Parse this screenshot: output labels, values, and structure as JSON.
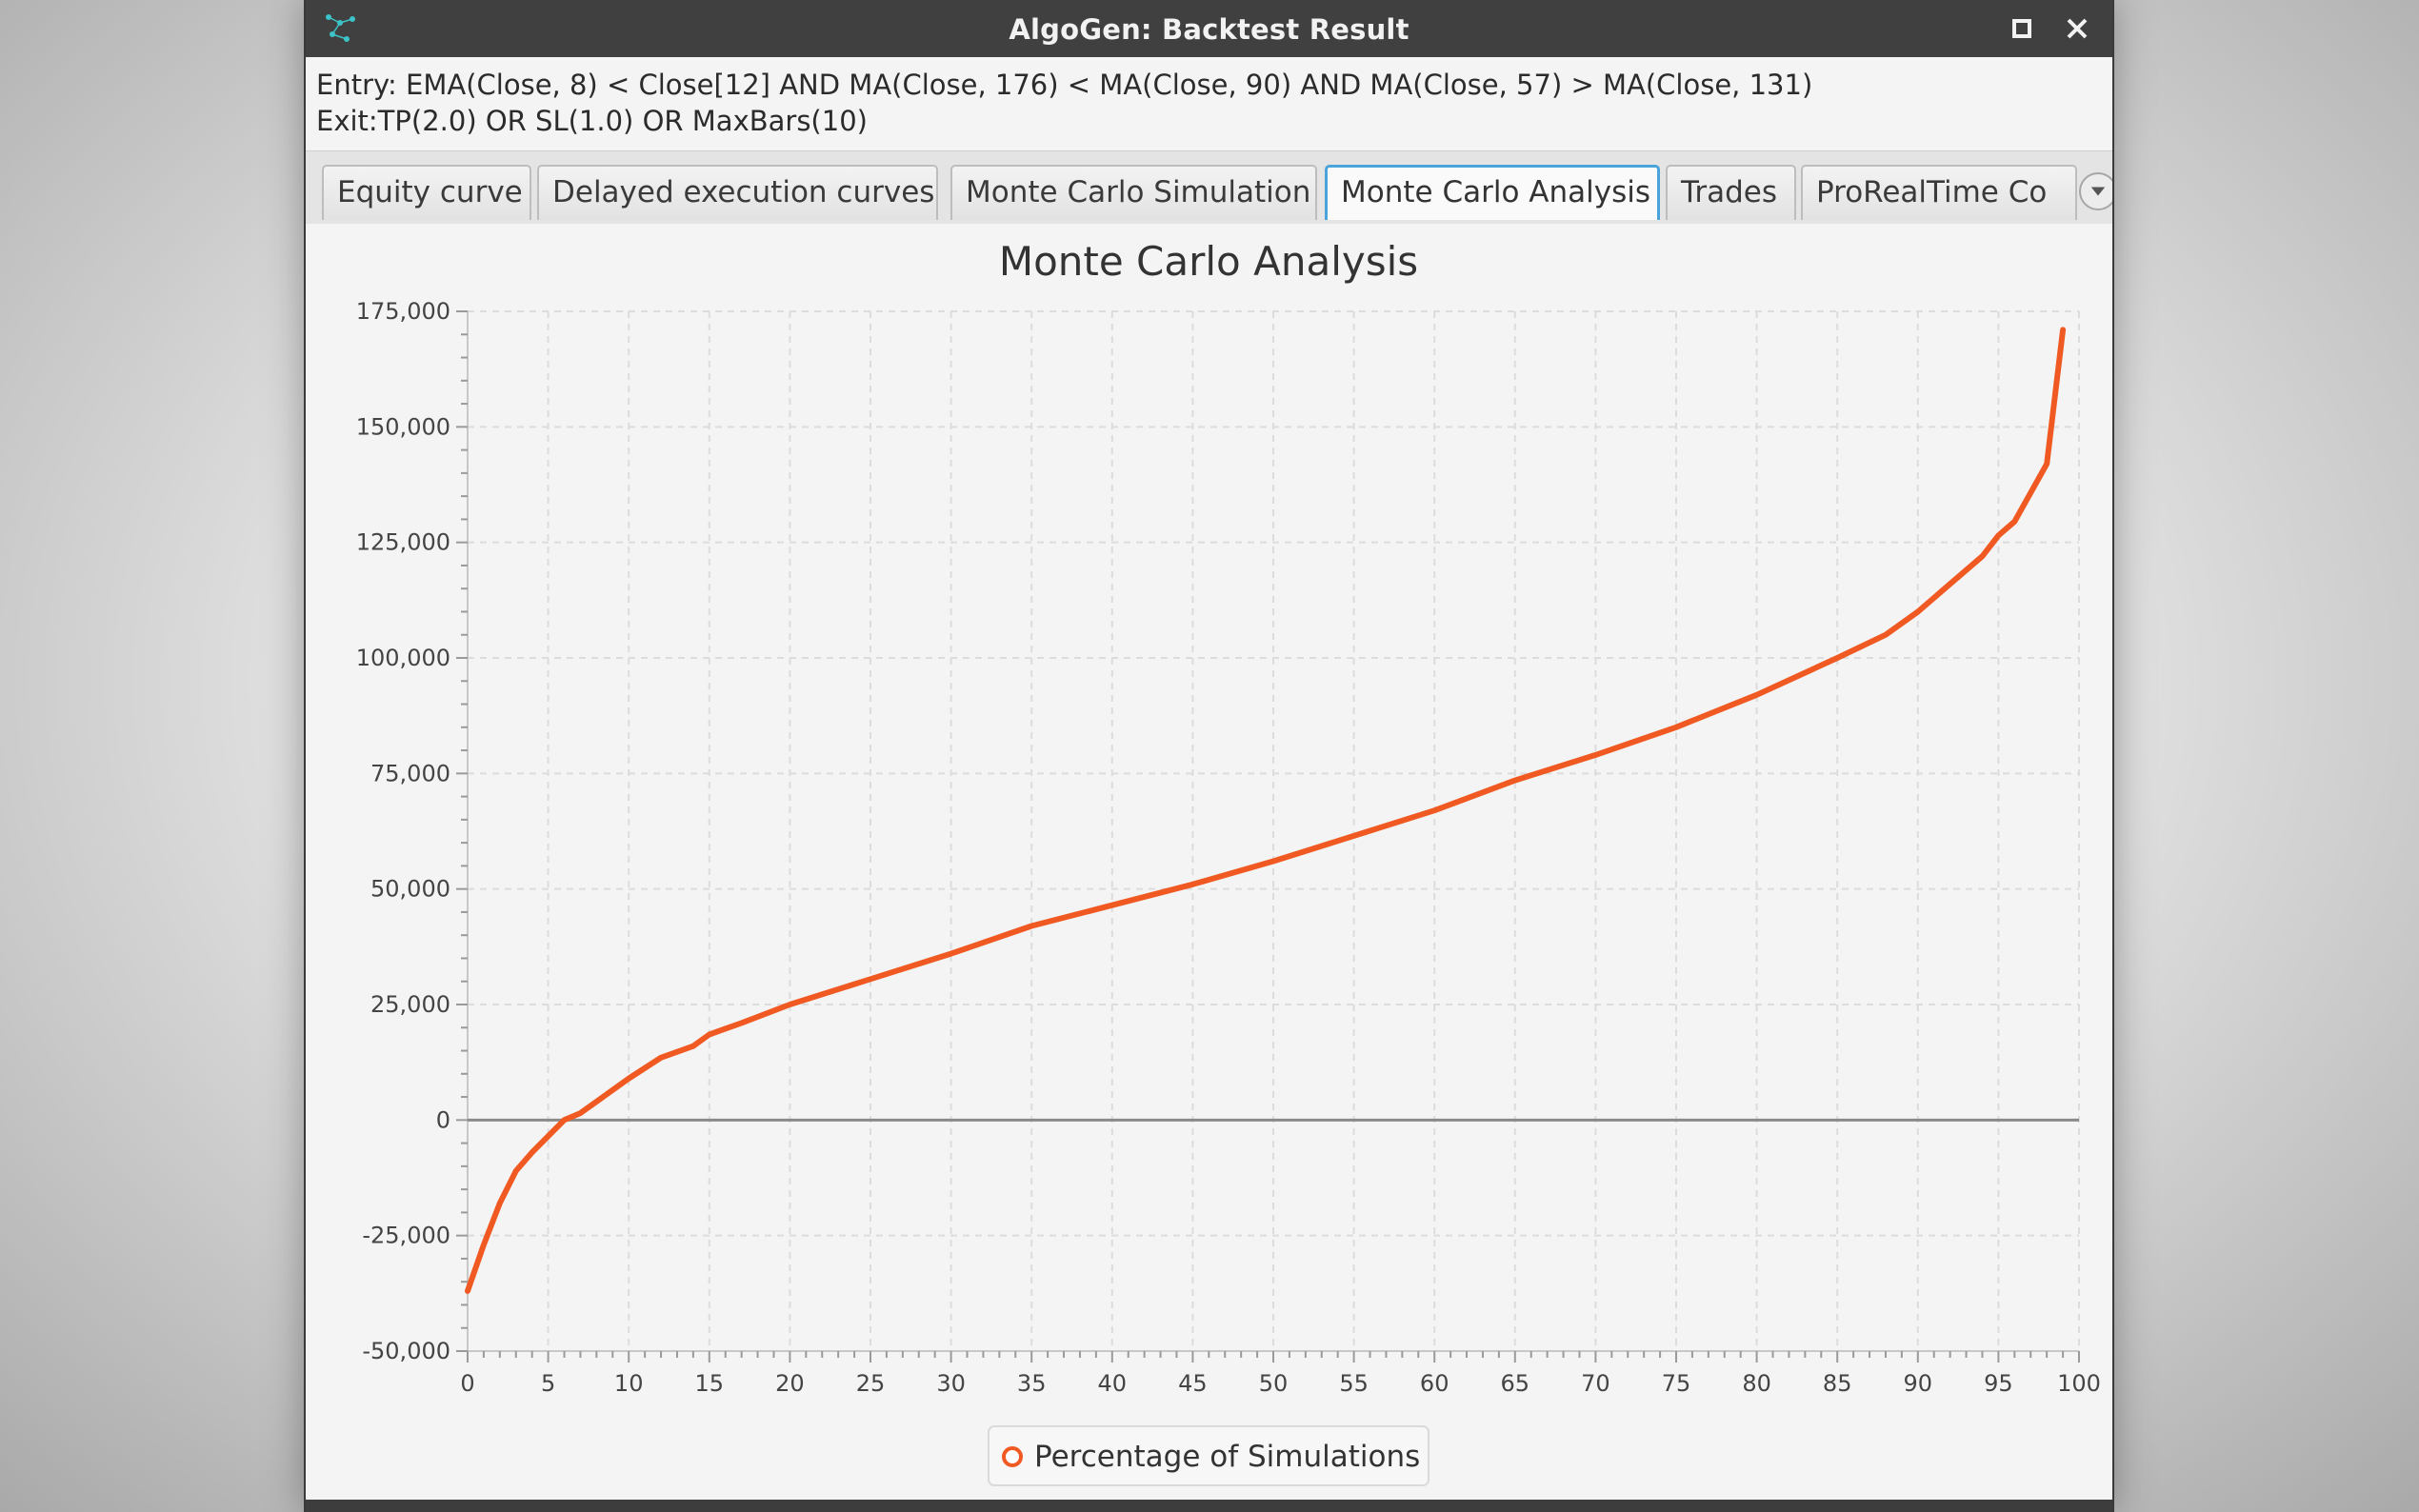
{
  "window": {
    "title": "AlgoGen: Backtest Result"
  },
  "strategy": {
    "entry": "Entry: EMA(Close, 8) < Close[12] AND MA(Close, 176) < MA(Close, 90) AND MA(Close, 57) > MA(Close, 131)",
    "exit": "Exit:TP(2.0) OR SL(1.0) OR MaxBars(10)"
  },
  "tabs": [
    {
      "label": "Equity curve",
      "active": false
    },
    {
      "label": "Delayed execution curves",
      "active": false
    },
    {
      "label": "Monte Carlo Simulation",
      "active": false
    },
    {
      "label": "Monte Carlo Analysis",
      "active": true
    },
    {
      "label": "Trades",
      "active": false
    },
    {
      "label": "ProRealTime Co",
      "active": false
    }
  ],
  "colors": {
    "series": "#f05a22",
    "active_tab": "#4ba3dc",
    "titlebar": "#404040"
  },
  "icons": {
    "app": "app-logo-icon",
    "maximize": "maximize-icon",
    "close": "close-icon",
    "tab_overflow": "chevron-down-icon"
  },
  "chart_data": {
    "type": "line",
    "title": "Monte Carlo Analysis",
    "xlabel": "",
    "ylabel": "",
    "xlim": [
      0,
      100
    ],
    "ylim": [
      -50000,
      175000
    ],
    "x_ticks": [
      0,
      5,
      10,
      15,
      20,
      25,
      30,
      35,
      40,
      45,
      50,
      55,
      60,
      65,
      70,
      75,
      80,
      85,
      90,
      95,
      100
    ],
    "x_tick_labels": [
      "0",
      "5",
      "10",
      "15",
      "20",
      "25",
      "30",
      "35",
      "40",
      "45",
      "50",
      "55",
      "60",
      "65",
      "70",
      "75",
      "80",
      "85",
      "90",
      "95",
      "100"
    ],
    "y_ticks": [
      -50000,
      -25000,
      0,
      25000,
      50000,
      75000,
      100000,
      125000,
      150000,
      175000
    ],
    "y_tick_labels": [
      "-50,000",
      "-25,000",
      "0",
      "25,000",
      "50,000",
      "75,000",
      "100,000",
      "125,000",
      "150,000",
      "175,000"
    ],
    "grid": true,
    "legend": "bottom-center",
    "series": [
      {
        "name": "Percentage of Simulations",
        "x": [
          0,
          1,
          2,
          3,
          4,
          5,
          6,
          7,
          8,
          10,
          12,
          14,
          15,
          17,
          20,
          25,
          30,
          35,
          40,
          45,
          50,
          55,
          60,
          65,
          70,
          75,
          80,
          85,
          88,
          90,
          92,
          94,
          95,
          96,
          98,
          99
        ],
        "y": [
          -37000,
          -27000,
          -18000,
          -11000,
          -7000,
          -3500,
          0,
          1500,
          4000,
          9000,
          13500,
          16000,
          18500,
          21000,
          25000,
          30500,
          36000,
          42000,
          46500,
          51000,
          56000,
          61500,
          67000,
          73500,
          79000,
          85000,
          92000,
          100000,
          105000,
          110000,
          116000,
          122000,
          126500,
          129500,
          142000,
          171000
        ]
      }
    ]
  },
  "legend": {
    "label": "Percentage of Simulations"
  }
}
